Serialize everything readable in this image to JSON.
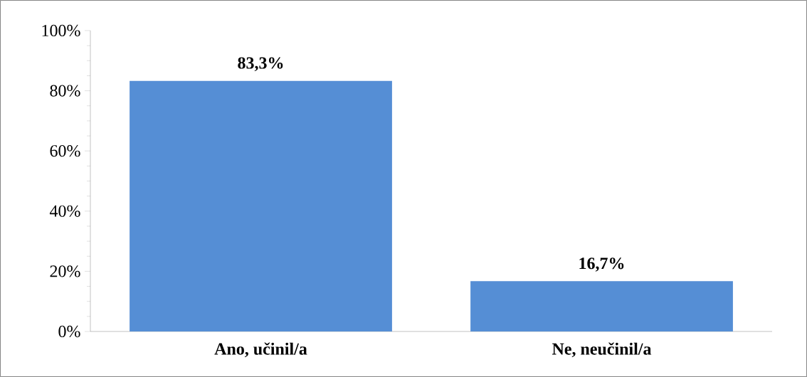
{
  "chart_data": {
    "type": "bar",
    "categories": [
      "Ano, učinil/a",
      "Ne, neučinil/a"
    ],
    "values": [
      83.3,
      16.7
    ],
    "color": "#558ed5",
    "value_labels": [
      "83,3%",
      "16,7%"
    ],
    "ylim": [
      0,
      100
    ],
    "yticks": [
      {
        "value": 0,
        "label": "0%"
      },
      {
        "value": 20,
        "label": "20%"
      },
      {
        "value": 40,
        "label": "40%"
      },
      {
        "value": 60,
        "label": "60%"
      },
      {
        "value": 80,
        "label": "80%"
      },
      {
        "value": 100,
        "label": "100%"
      }
    ]
  }
}
